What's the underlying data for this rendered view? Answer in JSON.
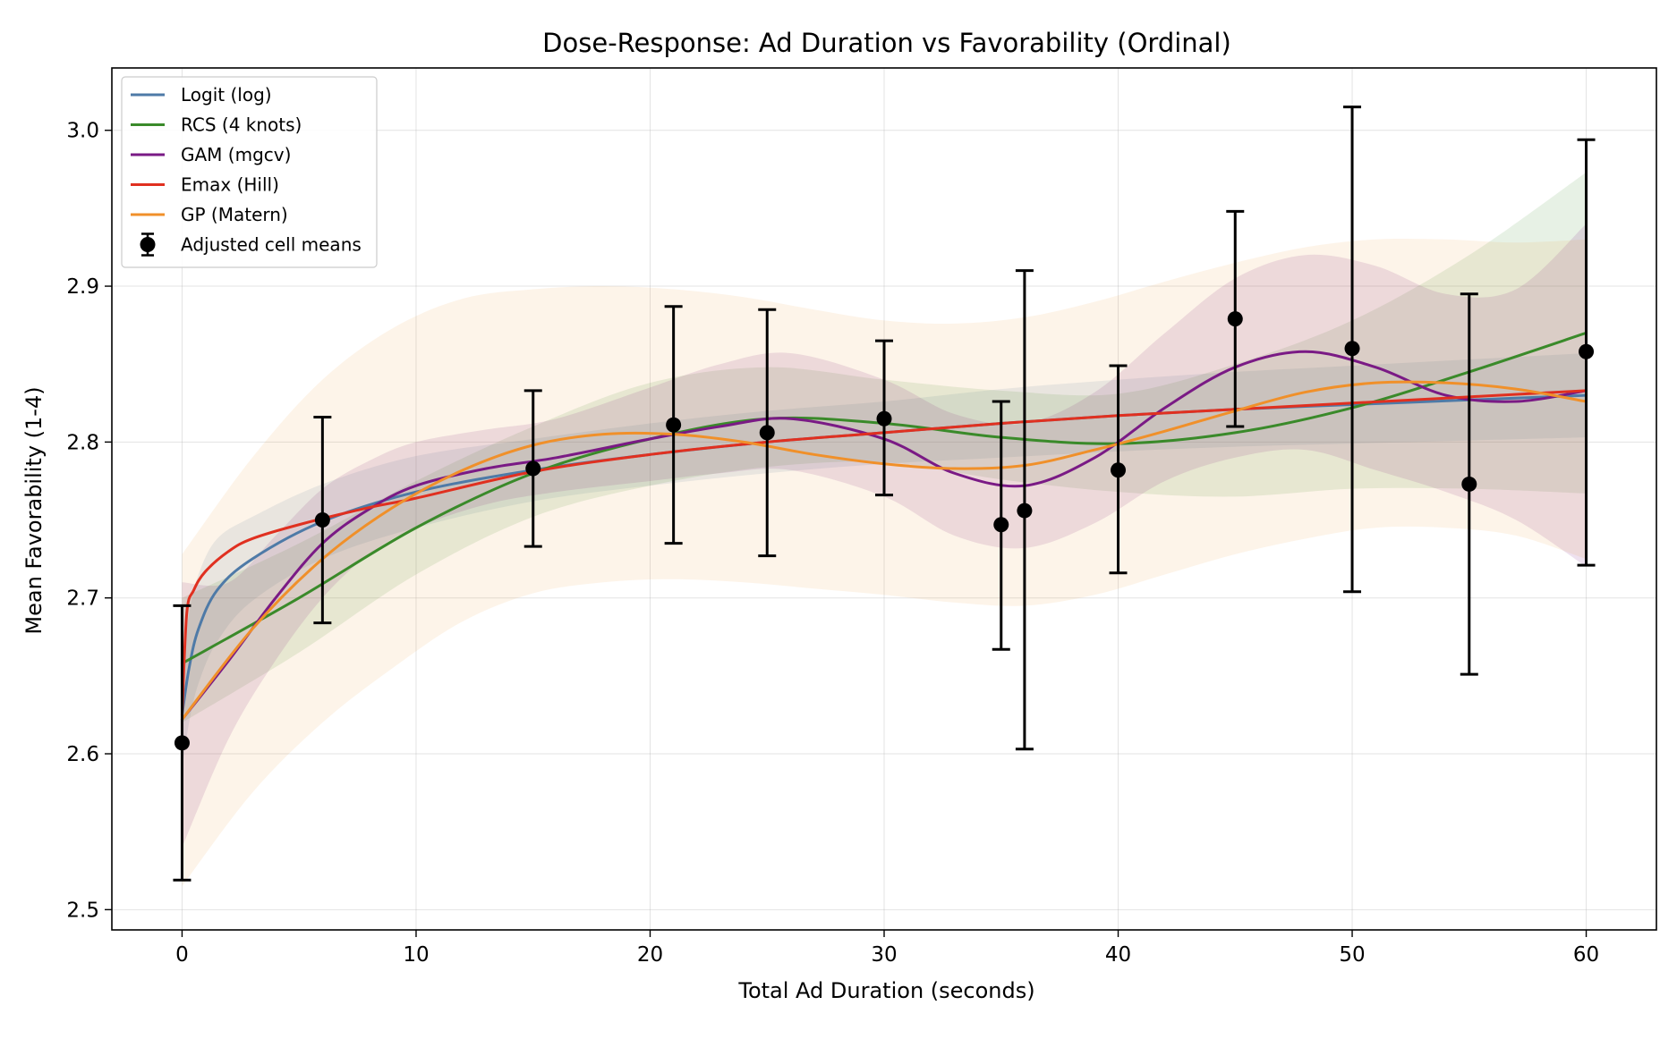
{
  "chart_data": {
    "type": "line",
    "title": "Dose-Response: Ad Duration vs Favorability (Ordinal)",
    "xlabel": "Total Ad Duration (seconds)",
    "ylabel": "Mean Favorability (1-4)",
    "xlim": [
      -3,
      63
    ],
    "ylim": [
      2.487,
      3.04
    ],
    "xticks": [
      0,
      10,
      20,
      30,
      40,
      50,
      60
    ],
    "yticks": [
      2.5,
      2.6,
      2.7,
      2.8,
      2.9,
      3.0
    ],
    "xtick_labels": [
      "0",
      "10",
      "20",
      "30",
      "40",
      "50",
      "60"
    ],
    "ytick_labels": [
      "2.5",
      "2.6",
      "2.7",
      "2.8",
      "2.9",
      "3.0"
    ],
    "grid": true,
    "legend_position": "top-left",
    "series": [
      {
        "name": "Logit (log)",
        "color": "#4e7aa7",
        "band_opacity": 0.12,
        "x": [
          0,
          0.3,
          0.7,
          1.5,
          3,
          6,
          10,
          15,
          20,
          25,
          30,
          35,
          40,
          45,
          50,
          55,
          60
        ],
        "y": [
          2.625,
          2.655,
          2.68,
          2.705,
          2.725,
          2.749,
          2.768,
          2.782,
          2.792,
          2.8,
          2.806,
          2.812,
          2.817,
          2.821,
          2.824,
          2.827,
          2.83
        ],
        "lower": [
          2.59,
          2.62,
          2.645,
          2.672,
          2.698,
          2.725,
          2.745,
          2.762,
          2.772,
          2.78,
          2.786,
          2.79,
          2.794,
          2.797,
          2.799,
          2.801,
          2.803
        ],
        "upper": [
          2.66,
          2.69,
          2.715,
          2.738,
          2.752,
          2.773,
          2.791,
          2.802,
          2.812,
          2.82,
          2.826,
          2.834,
          2.84,
          2.845,
          2.849,
          2.853,
          2.857
        ]
      },
      {
        "name": "RCS (4 knots)",
        "color": "#3a8a2a",
        "band_opacity": 0.12,
        "x": [
          0,
          5,
          10,
          15,
          20,
          25,
          30,
          35,
          40,
          45,
          50,
          55,
          60
        ],
        "y": [
          2.658,
          2.7,
          2.745,
          2.78,
          2.802,
          2.815,
          2.812,
          2.803,
          2.799,
          2.806,
          2.822,
          2.845,
          2.87
        ],
        "lower": [
          2.62,
          2.665,
          2.715,
          2.752,
          2.772,
          2.784,
          2.787,
          2.776,
          2.768,
          2.765,
          2.77,
          2.77,
          2.767
        ],
        "upper": [
          2.7,
          2.735,
          2.775,
          2.81,
          2.838,
          2.848,
          2.84,
          2.833,
          2.831,
          2.85,
          2.878,
          2.92,
          2.973
        ]
      },
      {
        "name": "GAM (mgcv)",
        "color": "#7a1a85",
        "band_opacity": 0.13,
        "x": [
          0,
          2,
          4,
          6,
          8,
          10,
          13,
          16,
          20,
          23,
          26,
          30,
          33,
          36,
          39,
          42,
          45,
          48,
          51,
          54,
          57,
          60
        ],
        "y": [
          2.622,
          2.66,
          2.7,
          2.735,
          2.757,
          2.772,
          2.783,
          2.79,
          2.802,
          2.81,
          2.815,
          2.802,
          2.78,
          2.772,
          2.79,
          2.822,
          2.848,
          2.858,
          2.848,
          2.83,
          2.826,
          2.833
        ],
        "lower": [
          2.54,
          2.61,
          2.66,
          2.7,
          2.728,
          2.745,
          2.76,
          2.768,
          2.775,
          2.78,
          2.782,
          2.765,
          2.74,
          2.732,
          2.748,
          2.775,
          2.79,
          2.795,
          2.782,
          2.768,
          2.75,
          2.72
        ],
        "upper": [
          2.71,
          2.71,
          2.74,
          2.77,
          2.788,
          2.8,
          2.808,
          2.815,
          2.835,
          2.85,
          2.857,
          2.84,
          2.818,
          2.812,
          2.832,
          2.87,
          2.905,
          2.92,
          2.913,
          2.895,
          2.898,
          2.94
        ]
      },
      {
        "name": "Emax (Hill)",
        "color": "#e03020",
        "band_opacity": 0,
        "x": [
          0,
          0.2,
          0.5,
          1,
          2,
          3,
          5,
          8,
          10,
          15,
          20,
          25,
          30,
          35,
          40,
          45,
          50,
          55,
          60
        ],
        "y": [
          2.625,
          2.69,
          2.705,
          2.717,
          2.73,
          2.738,
          2.747,
          2.758,
          2.764,
          2.781,
          2.792,
          2.8,
          2.806,
          2.812,
          2.817,
          2.821,
          2.825,
          2.829,
          2.833
        ],
        "lower": [],
        "upper": []
      },
      {
        "name": "GP (Matern)",
        "color": "#f0902a",
        "band_opacity": 0.1,
        "x": [
          0,
          3,
          6,
          9,
          12,
          15,
          18,
          21,
          24,
          27,
          30,
          33,
          36,
          39,
          42,
          45,
          48,
          51,
          54,
          57,
          60
        ],
        "y": [
          2.622,
          2.68,
          2.725,
          2.758,
          2.782,
          2.798,
          2.805,
          2.805,
          2.8,
          2.792,
          2.786,
          2.783,
          2.785,
          2.795,
          2.807,
          2.82,
          2.832,
          2.838,
          2.838,
          2.834,
          2.826
        ],
        "lower": [
          2.515,
          2.575,
          2.62,
          2.655,
          2.685,
          2.703,
          2.71,
          2.712,
          2.71,
          2.706,
          2.702,
          2.697,
          2.695,
          2.702,
          2.715,
          2.728,
          2.738,
          2.745,
          2.745,
          2.74,
          2.725
        ],
        "upper": [
          2.728,
          2.79,
          2.84,
          2.873,
          2.892,
          2.898,
          2.9,
          2.898,
          2.893,
          2.885,
          2.878,
          2.876,
          2.88,
          2.89,
          2.903,
          2.915,
          2.925,
          2.93,
          2.93,
          2.928,
          2.93
        ]
      }
    ],
    "points": {
      "name": "Adjusted cell means",
      "color": "#000000",
      "x": [
        0,
        6,
        15,
        21,
        25,
        30,
        35,
        36,
        40,
        45,
        50,
        55,
        60
      ],
      "y": [
        2.607,
        2.75,
        2.783,
        2.811,
        2.806,
        2.815,
        2.747,
        2.756,
        2.782,
        2.879,
        2.86,
        2.773,
        2.858
      ],
      "lower": [
        2.519,
        2.684,
        2.733,
        2.735,
        2.727,
        2.766,
        2.667,
        2.603,
        2.716,
        2.81,
        2.704,
        2.651,
        2.721
      ],
      "upper": [
        2.695,
        2.816,
        2.833,
        2.887,
        2.885,
        2.865,
        2.826,
        2.91,
        2.849,
        2.948,
        3.015,
        2.895,
        2.994
      ]
    }
  }
}
